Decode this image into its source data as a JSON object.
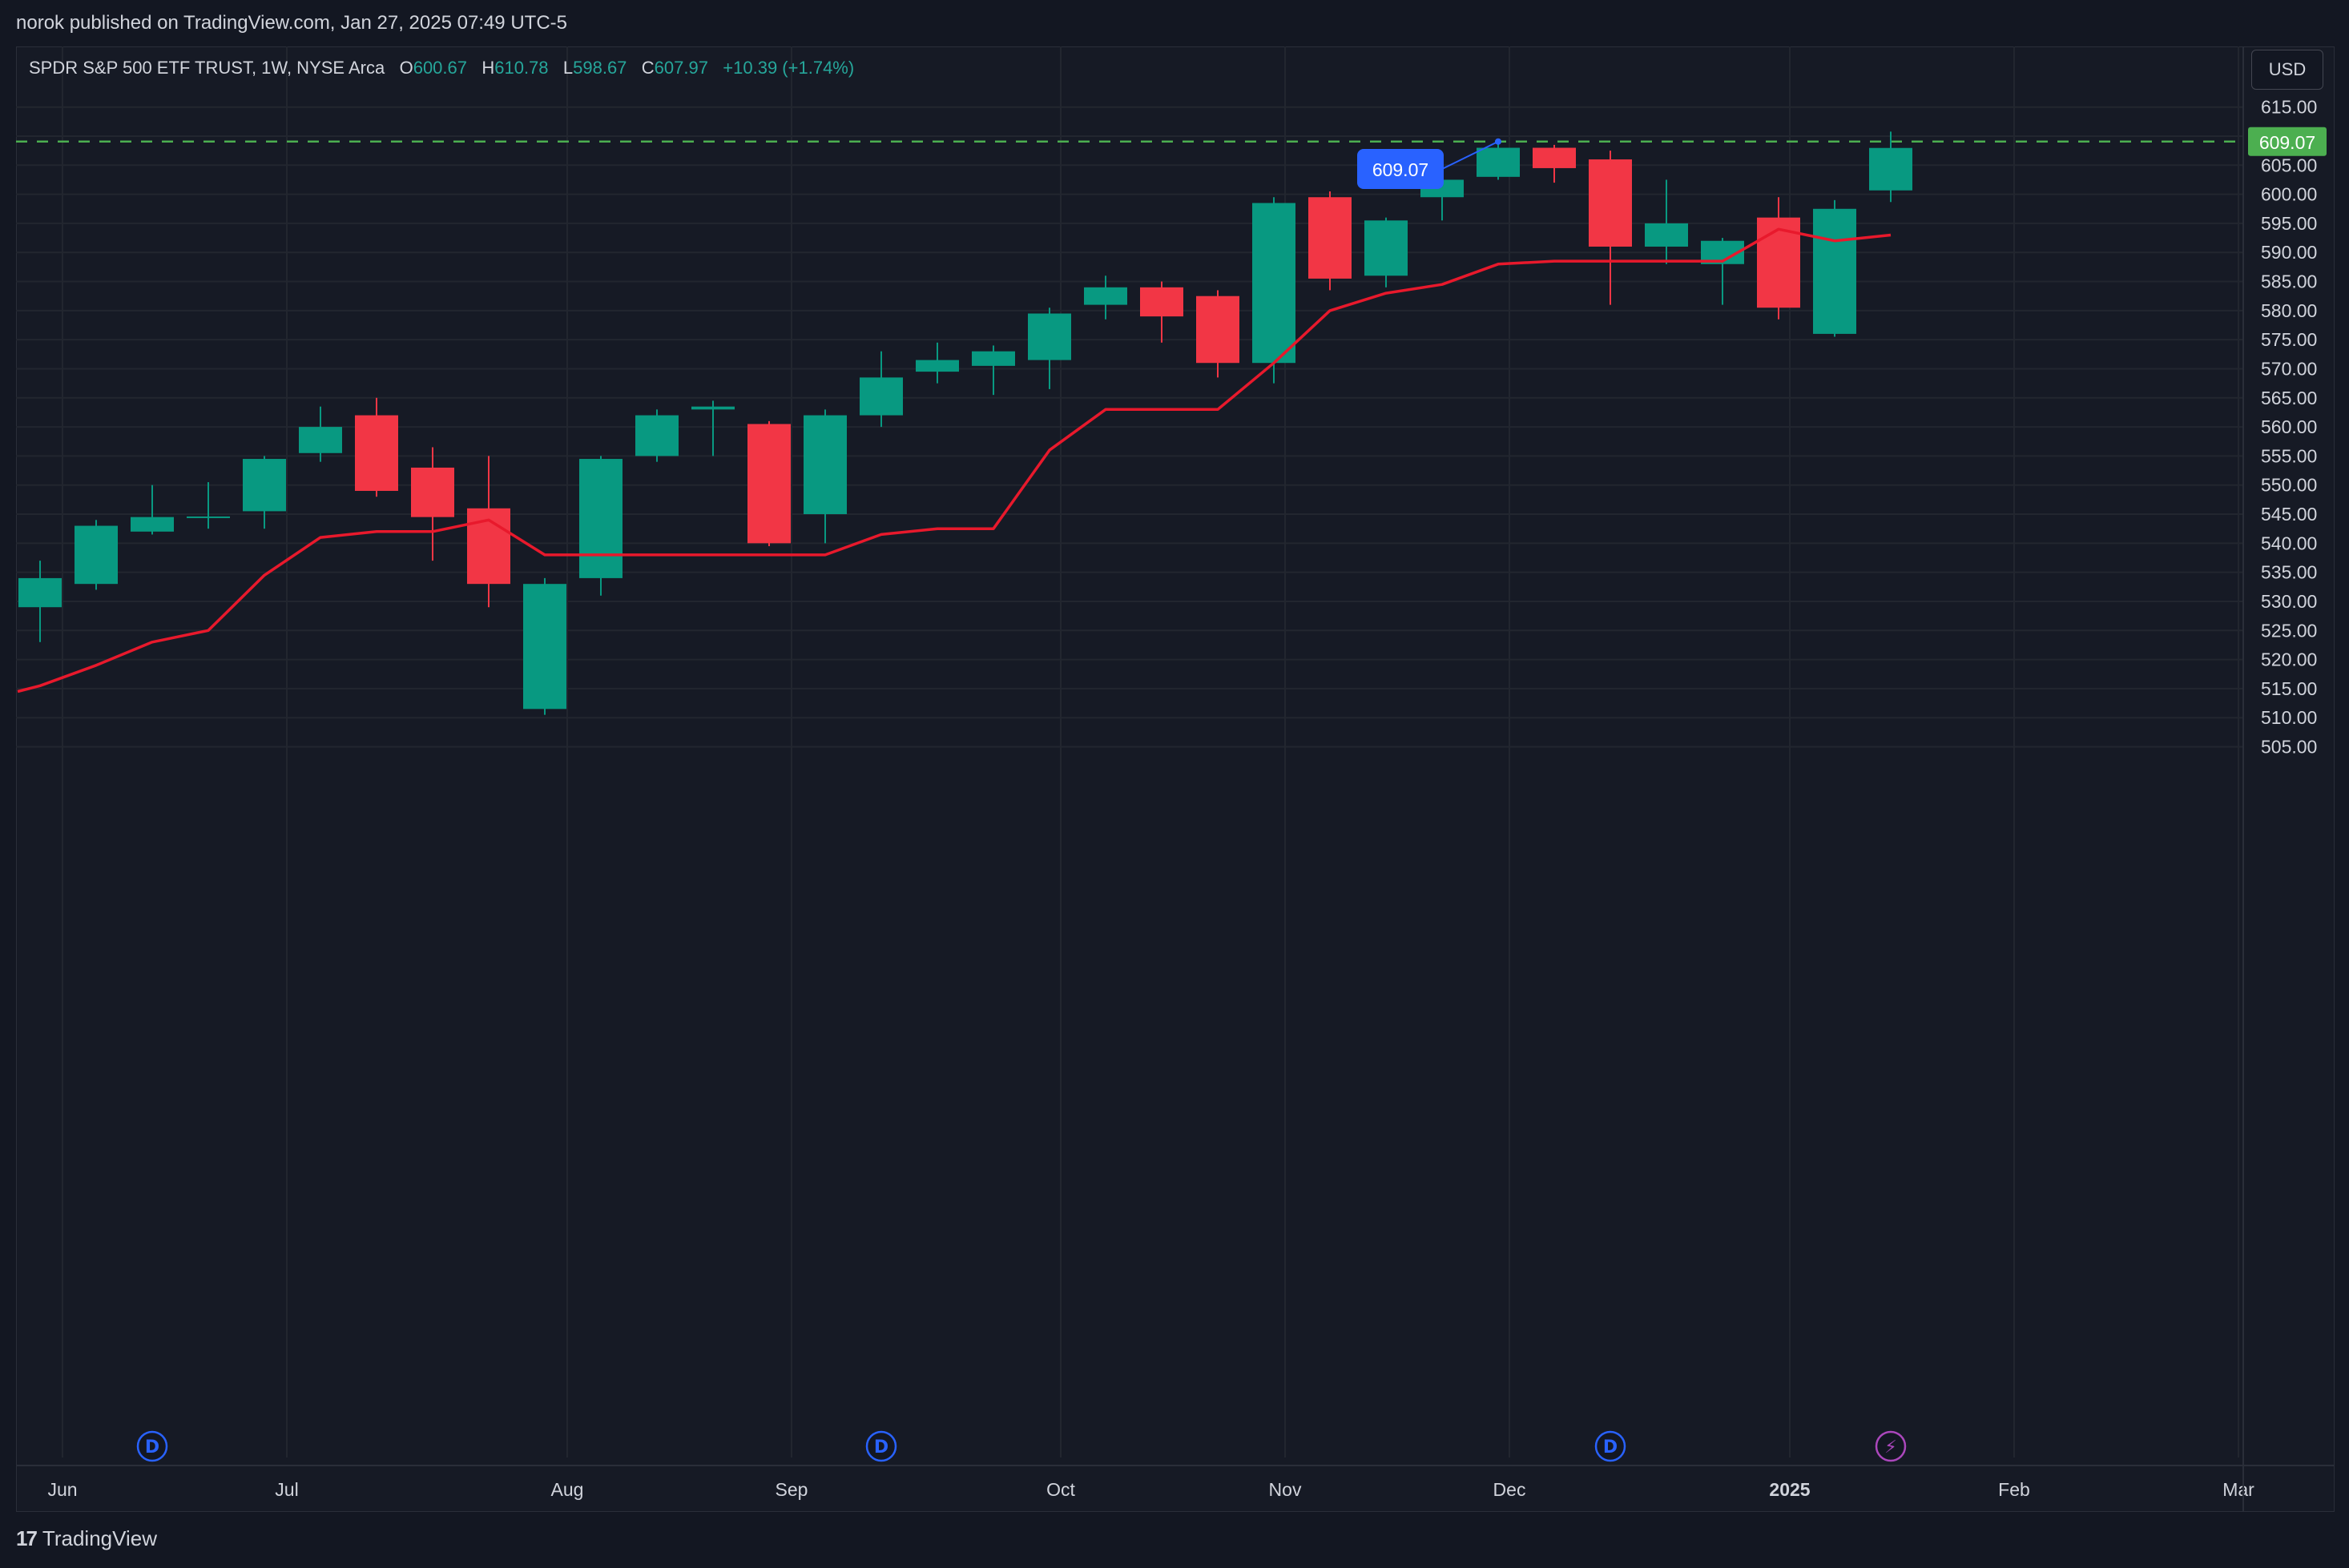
{
  "header": {
    "published": "norok published on TradingView.com, Jan 27, 2025 07:49 UTC-5"
  },
  "legend": {
    "symbol": "SPDR S&P 500 ETF TRUST, 1W, NYSE Arca",
    "open_label": "O",
    "open": "600.67",
    "high_label": "H",
    "high": "610.78",
    "low_label": "L",
    "low": "598.67",
    "close_label": "C",
    "close": "607.97",
    "change": "+10.39 (+1.74%)"
  },
  "currency_button": "USD",
  "footer": {
    "logo_mark": "17",
    "logo_text": "TradingView"
  },
  "colors": {
    "up": "#089981",
    "down": "#f23645",
    "line": "#e8192c",
    "price_line": "#4caf50",
    "callout": "#2962ff",
    "event_d": "#2962ff",
    "event_bolt": "#ab47bc"
  },
  "chart_data": {
    "type": "candlestick",
    "title": "SPDR S&P 500 ETF TRUST, 1W, NYSE Arca",
    "ylim": [
      502,
      619
    ],
    "yticks": [
      "505.00",
      "510.00",
      "515.00",
      "520.00",
      "525.00",
      "530.00",
      "535.00",
      "540.00",
      "545.00",
      "550.00",
      "555.00",
      "560.00",
      "565.00",
      "570.00",
      "575.00",
      "580.00",
      "585.00",
      "590.00",
      "595.00",
      "600.00",
      "605.00",
      "610.00",
      "615.00"
    ],
    "xticks": [
      {
        "label": "Jun",
        "week": 0.4,
        "bold": false
      },
      {
        "label": "Jul",
        "week": 4.4,
        "bold": false
      },
      {
        "label": "Aug",
        "week": 9.4,
        "bold": false
      },
      {
        "label": "Sep",
        "week": 13.4,
        "bold": false
      },
      {
        "label": "Oct",
        "week": 18.2,
        "bold": false
      },
      {
        "label": "Nov",
        "week": 22.2,
        "bold": false
      },
      {
        "label": "Dec",
        "week": 26.2,
        "bold": false
      },
      {
        "label": "2025",
        "week": 31.2,
        "bold": true
      },
      {
        "label": "Feb",
        "week": 35.2,
        "bold": false
      },
      {
        "label": "Mar",
        "week": 39.2,
        "bold": false
      }
    ],
    "candles": [
      {
        "o": 529.0,
        "h": 537.0,
        "l": 523.0,
        "c": 534.0
      },
      {
        "o": 533.0,
        "h": 544.0,
        "l": 532.0,
        "c": 543.0
      },
      {
        "o": 542.0,
        "h": 550.0,
        "l": 541.5,
        "c": 544.5
      },
      {
        "o": 544.5,
        "h": 550.5,
        "l": 542.5,
        "c": 544.6
      },
      {
        "o": 545.5,
        "h": 555.0,
        "l": 542.5,
        "c": 554.5
      },
      {
        "o": 555.5,
        "h": 563.5,
        "l": 554.0,
        "c": 560.0
      },
      {
        "o": 562.0,
        "h": 565.0,
        "l": 548.0,
        "c": 549.0
      },
      {
        "o": 553.0,
        "h": 556.5,
        "l": 537.0,
        "c": 544.5
      },
      {
        "o": 546.0,
        "h": 555.0,
        "l": 529.0,
        "c": 533.0
      },
      {
        "o": 511.5,
        "h": 534.0,
        "l": 510.5,
        "c": 533.0
      },
      {
        "o": 534.0,
        "h": 555.0,
        "l": 531.0,
        "c": 554.5
      },
      {
        "o": 555.0,
        "h": 563.0,
        "l": 554.0,
        "c": 562.0
      },
      {
        "o": 563.0,
        "h": 564.5,
        "l": 555.0,
        "c": 563.5
      },
      {
        "o": 560.5,
        "h": 561.0,
        "l": 539.5,
        "c": 540.0
      },
      {
        "o": 545.0,
        "h": 563.0,
        "l": 540.0,
        "c": 562.0
      },
      {
        "o": 562.0,
        "h": 573.0,
        "l": 560.0,
        "c": 568.5
      },
      {
        "o": 569.5,
        "h": 574.5,
        "l": 567.5,
        "c": 571.5
      },
      {
        "o": 570.5,
        "h": 574.0,
        "l": 565.5,
        "c": 573.0
      },
      {
        "o": 571.5,
        "h": 580.5,
        "l": 566.5,
        "c": 579.5
      },
      {
        "o": 581.0,
        "h": 586.0,
        "l": 578.5,
        "c": 584.0
      },
      {
        "o": 584.0,
        "h": 585.0,
        "l": 574.5,
        "c": 579.0
      },
      {
        "o": 582.5,
        "h": 583.5,
        "l": 568.5,
        "c": 571.0
      },
      {
        "o": 571.0,
        "h": 599.5,
        "l": 567.5,
        "c": 598.5
      },
      {
        "o": 599.5,
        "h": 600.5,
        "l": 583.5,
        "c": 585.5
      },
      {
        "o": 586.0,
        "h": 596.0,
        "l": 584.0,
        "c": 595.5
      },
      {
        "o": 599.5,
        "h": 603.5,
        "l": 595.5,
        "c": 602.5
      },
      {
        "o": 603.0,
        "h": 609.07,
        "l": 602.5,
        "c": 608.0
      },
      {
        "o": 608.0,
        "h": 608.5,
        "l": 602.0,
        "c": 604.5
      },
      {
        "o": 606.0,
        "h": 607.5,
        "l": 581.0,
        "c": 591.0
      },
      {
        "o": 591.0,
        "h": 602.5,
        "l": 588.0,
        "c": 595.0
      },
      {
        "o": 588.0,
        "h": 592.5,
        "l": 581.0,
        "c": 592.0
      },
      {
        "o": 596.0,
        "h": 599.5,
        "l": 578.5,
        "c": 580.5
      },
      {
        "o": 576.0,
        "h": 599.0,
        "l": 575.5,
        "c": 597.5
      },
      {
        "o": 600.67,
        "h": 610.78,
        "l": 598.67,
        "c": 607.97
      }
    ],
    "line_series": [
      {
        "week": -0.4,
        "value": 514.5
      },
      {
        "week": 0,
        "value": 515.5
      },
      {
        "week": 1,
        "value": 519.0
      },
      {
        "week": 2,
        "value": 523.0
      },
      {
        "week": 3,
        "value": 525.0
      },
      {
        "week": 4,
        "value": 534.5
      },
      {
        "week": 5,
        "value": 541.0
      },
      {
        "week": 6,
        "value": 542.0
      },
      {
        "week": 7,
        "value": 542.0
      },
      {
        "week": 8,
        "value": 544.0
      },
      {
        "week": 9,
        "value": 538.0
      },
      {
        "week": 10,
        "value": 538.0
      },
      {
        "week": 11,
        "value": 538.0
      },
      {
        "week": 12,
        "value": 538.0
      },
      {
        "week": 13,
        "value": 538.0
      },
      {
        "week": 14,
        "value": 538.0
      },
      {
        "week": 15,
        "value": 541.5
      },
      {
        "week": 16,
        "value": 542.5
      },
      {
        "week": 17,
        "value": 542.5
      },
      {
        "week": 18,
        "value": 556.0
      },
      {
        "week": 19,
        "value": 563.0
      },
      {
        "week": 20,
        "value": 563.0
      },
      {
        "week": 21,
        "value": 563.0
      },
      {
        "week": 22,
        "value": 571.0
      },
      {
        "week": 23,
        "value": 580.0
      },
      {
        "week": 24,
        "value": 583.0
      },
      {
        "week": 25,
        "value": 584.5
      },
      {
        "week": 26,
        "value": 588.0
      },
      {
        "week": 27,
        "value": 588.5
      },
      {
        "week": 28,
        "value": 588.5
      },
      {
        "week": 29,
        "value": 588.5
      },
      {
        "week": 30,
        "value": 588.5
      },
      {
        "week": 31,
        "value": 594.0
      },
      {
        "week": 32,
        "value": 592.0
      },
      {
        "week": 33,
        "value": 593.0
      }
    ],
    "current_price": "609.07",
    "callout": {
      "label": "609.07",
      "week": 26,
      "value": 609.07
    },
    "events": [
      {
        "type": "dividend",
        "label": "D",
        "week": 2
      },
      {
        "type": "dividend",
        "label": "D",
        "week": 15
      },
      {
        "type": "dividend",
        "label": "D",
        "week": 28
      },
      {
        "type": "earnings",
        "label": "⚡",
        "week": 33
      }
    ]
  }
}
